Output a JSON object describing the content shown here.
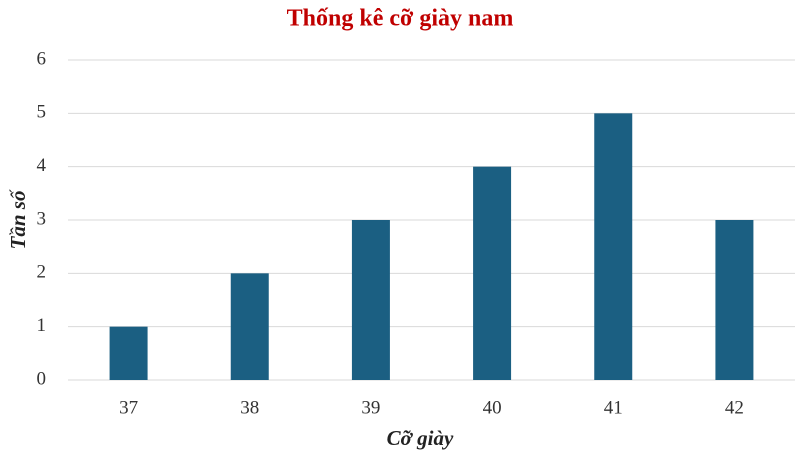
{
  "chart_data": {
    "type": "bar",
    "title": "Thống kê cỡ giày nam",
    "x_label": "Cỡ giày",
    "y_label": "Tần số",
    "categories": [
      "37",
      "38",
      "39",
      "40",
      "41",
      "42"
    ],
    "values": [
      1,
      2,
      3,
      4,
      5,
      3
    ],
    "color": "#1b5f82",
    "ylim": [
      0,
      6
    ],
    "yticks": [
      0,
      1,
      2,
      3,
      4,
      5,
      6
    ],
    "grid": true
  }
}
